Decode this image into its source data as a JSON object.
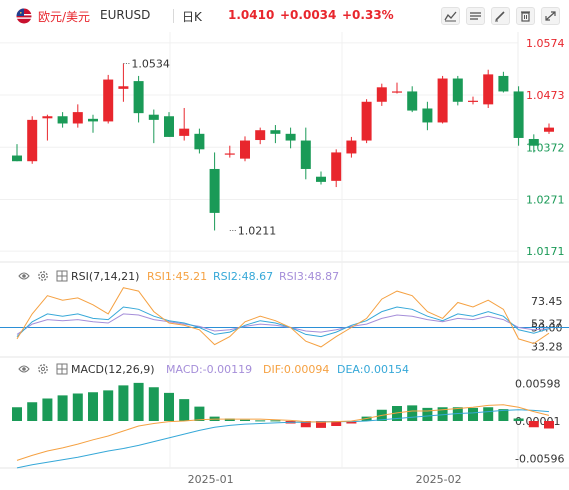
{
  "header": {
    "symbol_name": "欧元/美元",
    "symbol_code": "EURUSD",
    "timeframe": "日K",
    "price": "1.0410",
    "change": "+0.0034",
    "change_pct": "+0.33%",
    "up_color": "#e8262d",
    "down_color": "#1a9a57",
    "icons": [
      "candle-icon",
      "line-icon",
      "draw-icon",
      "delete-icon",
      "fullscreen-icon"
    ]
  },
  "rsi_panel": {
    "label": "RSI(7,14,21)",
    "rsi1": "RSI1:45.21",
    "rsi2": "RSI2:48.67",
    "rsi3": "RSI3:48.87",
    "colors": {
      "rsi1": "#f5a142",
      "rsi2": "#36a8d8",
      "rsi3": "#a58ed9"
    }
  },
  "macd_panel": {
    "label": "MACD(12,26,9)",
    "macd": "MACD:-0.00119",
    "dif": "DIF:0.00094",
    "dea": "DEA:0.00154",
    "colors": {
      "macd": "#a58ed9",
      "dif": "#f5a142",
      "dea": "#36a8d8"
    }
  },
  "chart_data": {
    "type": "candlestick",
    "price_axis": {
      "ticks": [
        1.0574,
        1.0473,
        1.0372,
        1.0271,
        1.0171
      ],
      "range": [
        1.015,
        1.0595
      ],
      "top_tick_color": "#e8262d",
      "bottom_tick_color": "#1a9a57"
    },
    "annotations": [
      {
        "text": "1.0534",
        "at_index": 7,
        "value": 1.0534
      },
      {
        "text": "1.0211",
        "at_index": 14,
        "value": 1.0211
      }
    ],
    "x_labels": [
      {
        "text": "2025-01",
        "at_index": 13
      },
      {
        "text": "2025-02",
        "at_index": 28
      }
    ],
    "candles": [
      {
        "o": 1.0356,
        "h": 1.0378,
        "l": 1.0345,
        "c": 1.0345
      },
      {
        "o": 1.0345,
        "h": 1.0432,
        "l": 1.034,
        "c": 1.0425
      },
      {
        "o": 1.0428,
        "h": 1.0435,
        "l": 1.0385,
        "c": 1.0432
      },
      {
        "o": 1.0432,
        "h": 1.044,
        "l": 1.041,
        "c": 1.0418
      },
      {
        "o": 1.0418,
        "h": 1.0455,
        "l": 1.041,
        "c": 1.044
      },
      {
        "o": 1.0427,
        "h": 1.0435,
        "l": 1.04,
        "c": 1.0422
      },
      {
        "o": 1.0422,
        "h": 1.0512,
        "l": 1.0418,
        "c": 1.0503
      },
      {
        "o": 1.0485,
        "h": 1.0534,
        "l": 1.046,
        "c": 1.049
      },
      {
        "o": 1.05,
        "h": 1.051,
        "l": 1.042,
        "c": 1.0438
      },
      {
        "o": 1.0435,
        "h": 1.0445,
        "l": 1.038,
        "c": 1.0425
      },
      {
        "o": 1.0432,
        "h": 1.044,
        "l": 1.0392,
        "c": 1.0392
      },
      {
        "o": 1.0394,
        "h": 1.0448,
        "l": 1.0385,
        "c": 1.0408
      },
      {
        "o": 1.0398,
        "h": 1.0408,
        "l": 1.036,
        "c": 1.0368
      },
      {
        "o": 1.033,
        "h": 1.0362,
        "l": 1.0211,
        "c": 1.0245
      },
      {
        "o": 1.0358,
        "h": 1.0375,
        "l": 1.0352,
        "c": 1.036
      },
      {
        "o": 1.035,
        "h": 1.0393,
        "l": 1.0345,
        "c": 1.0385
      },
      {
        "o": 1.0386,
        "h": 1.041,
        "l": 1.0378,
        "c": 1.0405
      },
      {
        "o": 1.0405,
        "h": 1.0415,
        "l": 1.038,
        "c": 1.0398
      },
      {
        "o": 1.0398,
        "h": 1.041,
        "l": 1.037,
        "c": 1.0385
      },
      {
        "o": 1.0385,
        "h": 1.041,
        "l": 1.031,
        "c": 1.033
      },
      {
        "o": 1.0315,
        "h": 1.0325,
        "l": 1.03,
        "c": 1.0305
      },
      {
        "o": 1.0307,
        "h": 1.0368,
        "l": 1.0295,
        "c": 1.0362
      },
      {
        "o": 1.036,
        "h": 1.0392,
        "l": 1.0352,
        "c": 1.0385
      },
      {
        "o": 1.0385,
        "h": 1.0465,
        "l": 1.038,
        "c": 1.046
      },
      {
        "o": 1.046,
        "h": 1.0495,
        "l": 1.0452,
        "c": 1.0488
      },
      {
        "o": 1.0478,
        "h": 1.0497,
        "l": 1.0476,
        "c": 1.048
      },
      {
        "o": 1.048,
        "h": 1.049,
        "l": 1.044,
        "c": 1.0443
      },
      {
        "o": 1.0447,
        "h": 1.046,
        "l": 1.0405,
        "c": 1.042
      },
      {
        "o": 1.042,
        "h": 1.051,
        "l": 1.0418,
        "c": 1.0505
      },
      {
        "o": 1.0505,
        "h": 1.051,
        "l": 1.0453,
        "c": 1.046
      },
      {
        "o": 1.046,
        "h": 1.047,
        "l": 1.0455,
        "c": 1.0462
      },
      {
        "o": 1.0455,
        "h": 1.0522,
        "l": 1.0448,
        "c": 1.0513
      },
      {
        "o": 1.051,
        "h": 1.0518,
        "l": 1.0478,
        "c": 1.048
      },
      {
        "o": 1.048,
        "h": 1.049,
        "l": 1.0375,
        "c": 1.039
      },
      {
        "o": 1.0388,
        "h": 1.0397,
        "l": 1.0362,
        "c": 1.0375
      },
      {
        "o": 1.0402,
        "h": 1.0418,
        "l": 1.0398,
        "c": 1.041
      }
    ],
    "rsi": {
      "ticks": [
        73.45,
        53.37,
        50.0,
        33.28
      ],
      "range": [
        25,
        90
      ],
      "rsi1": [
        40,
        62,
        78,
        74,
        76,
        70,
        62,
        85,
        82,
        64,
        54,
        52,
        48,
        35,
        42,
        55,
        60,
        56,
        50,
        38,
        33,
        42,
        50,
        58,
        75,
        82,
        78,
        64,
        58,
        72,
        68,
        74,
        66,
        40,
        36,
        45
      ],
      "rsi2": [
        42,
        55,
        62,
        60,
        62,
        58,
        57,
        68,
        66,
        60,
        56,
        54,
        50,
        44,
        46,
        52,
        56,
        54,
        50,
        44,
        42,
        46,
        52,
        56,
        64,
        68,
        66,
        60,
        56,
        62,
        60,
        64,
        60,
        48,
        45,
        49
      ],
      "rsi3": [
        44,
        53,
        57,
        56,
        57,
        55,
        54,
        62,
        61,
        57,
        55,
        53,
        51,
        47,
        48,
        51,
        53,
        52,
        50,
        47,
        46,
        48,
        51,
        53,
        58,
        61,
        60,
        57,
        55,
        58,
        57,
        60,
        57,
        50,
        48,
        49
      ]
    },
    "macd": {
      "ticks": [
        0.00598,
        1e-05,
        -0.00596
      ],
      "range": [
        -0.0072,
        0.0072
      ],
      "hist": [
        0.0022,
        0.003,
        0.0036,
        0.0041,
        0.0044,
        0.0046,
        0.0049,
        0.0057,
        0.0061,
        0.0054,
        0.0045,
        0.0035,
        0.0023,
        0.0007,
        0.0004,
        0.0002,
        0.0001,
        0.0001,
        -0.0004,
        -0.001,
        -0.0011,
        -0.0008,
        -0.0004,
        0.0007,
        0.0018,
        0.0024,
        0.0025,
        0.0021,
        0.0022,
        0.0022,
        0.0021,
        0.0022,
        0.0019,
        0.0004,
        -0.001,
        -0.0012
      ],
      "dif": [
        -0.0063,
        -0.0055,
        -0.0048,
        -0.0043,
        -0.0037,
        -0.003,
        -0.0024,
        -0.0016,
        -0.0008,
        -0.0004,
        -0.0001,
        0.0,
        0.0002,
        0.0003,
        0.0003,
        0.0003,
        0.0003,
        0.0002,
        0.0001,
        -0.0001,
        -0.0002,
        -0.0001,
        0.0,
        0.0004,
        0.0009,
        0.0013,
        0.0016,
        0.0016,
        0.0018,
        0.002,
        0.0022,
        0.0025,
        0.0026,
        0.0022,
        0.0015,
        0.0009
      ],
      "dea": [
        -0.0075,
        -0.007,
        -0.0066,
        -0.0062,
        -0.0058,
        -0.0053,
        -0.0048,
        -0.0044,
        -0.0039,
        -0.0033,
        -0.0027,
        -0.0021,
        -0.0015,
        -0.001,
        -0.0007,
        -0.0005,
        -0.0004,
        -0.0003,
        -0.0002,
        -0.0002,
        -0.0001,
        -0.0001,
        -0.0001,
        0.0,
        0.0002,
        0.0004,
        0.0006,
        0.0008,
        0.001,
        0.0012,
        0.0013,
        0.0015,
        0.0017,
        0.0018,
        0.0017,
        0.0015
      ]
    }
  }
}
